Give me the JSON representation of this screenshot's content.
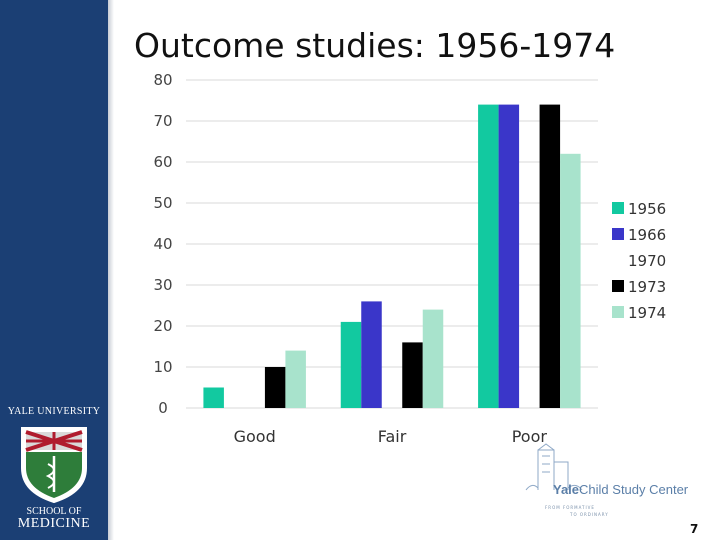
{
  "slide": {
    "title": "Outcome studies: 1956-1974",
    "page_number": "7"
  },
  "branding": {
    "university": "YALE UNIVERSITY",
    "school_line1": "SCHOOL OF",
    "school_line2": "MEDICINE",
    "center_name_prefix": "Yale",
    "center_name_rest": "Child Study Center",
    "center_tagline_1": "FROM FORMATIVE",
    "center_tagline_2": "TO ORDINARY"
  },
  "colors": {
    "sidebar": "#1b3f74",
    "s1956": "#12c9a0",
    "s1966": "#3a36c9",
    "s1970": "#ffffff",
    "s1973": "#000000",
    "s1974": "#a8e3cc"
  },
  "chart_data": {
    "type": "bar",
    "categories": [
      "Good",
      "Fair",
      "Poor"
    ],
    "series": [
      {
        "name": "1956",
        "values": [
          5,
          21,
          74
        ]
      },
      {
        "name": "1966",
        "values": [
          0,
          26,
          74
        ]
      },
      {
        "name": "1970",
        "values": [
          0,
          0,
          0
        ]
      },
      {
        "name": "1973",
        "values": [
          10,
          16,
          74
        ]
      },
      {
        "name": "1974",
        "values": [
          14,
          24,
          62
        ]
      }
    ],
    "ylim": [
      0,
      80
    ],
    "yticks": [
      0,
      10,
      20,
      30,
      40,
      50,
      60,
      70,
      80
    ],
    "grid": true,
    "legend_position": "right"
  }
}
